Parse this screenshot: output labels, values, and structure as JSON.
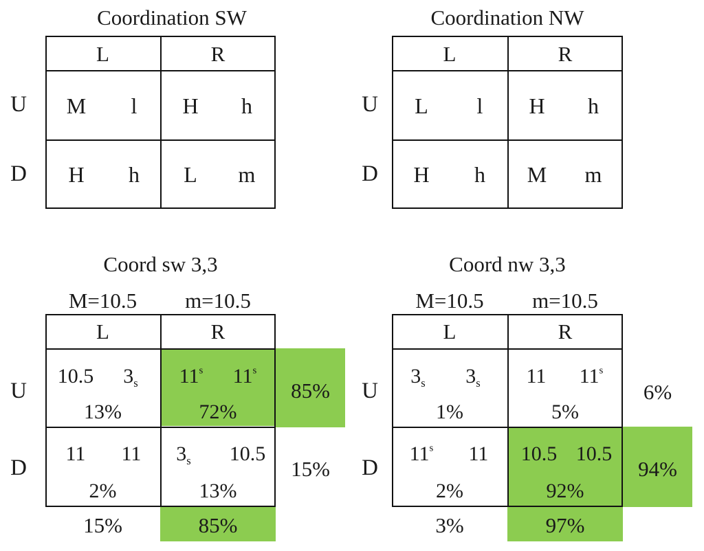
{
  "top_left": {
    "title": "Coordination SW",
    "col_labels": [
      "L",
      "R"
    ],
    "row_labels": [
      "U",
      "D"
    ],
    "cells": [
      [
        {
          "a": "M",
          "b": "l"
        },
        {
          "a": "H",
          "b": "h"
        }
      ],
      [
        {
          "a": "H",
          "b": "h"
        },
        {
          "a": "L",
          "b": "m"
        }
      ]
    ]
  },
  "top_right": {
    "title": "Coordination NW",
    "col_labels": [
      "L",
      "R"
    ],
    "row_labels": [
      "U",
      "D"
    ],
    "cells": [
      [
        {
          "a": "L",
          "b": "l"
        },
        {
          "a": "H",
          "b": "h"
        }
      ],
      [
        {
          "a": "H",
          "b": "h"
        },
        {
          "a": "M",
          "b": "m"
        }
      ]
    ]
  },
  "bottom_left": {
    "title": "Coord sw 3,3",
    "params": [
      "M=10.5",
      "m=10.5"
    ],
    "col_labels": [
      "L",
      "R"
    ],
    "row_labels": [
      "U",
      "D"
    ],
    "cells": [
      [
        {
          "a": "10.5",
          "b": "3",
          "b_sub": "s",
          "pct": "13%"
        },
        {
          "a": "11",
          "a_sup": "s",
          "b": "11",
          "b_sup": "s",
          "pct": "72%"
        }
      ],
      [
        {
          "a": "11",
          "b": "11",
          "pct": "2%"
        },
        {
          "a": "3",
          "a_sub": "s",
          "b": "10.5",
          "pct": "13%"
        }
      ]
    ],
    "row_totals": [
      "85%",
      "15%"
    ],
    "col_totals": [
      "15%",
      "85%"
    ]
  },
  "bottom_right": {
    "title": "Coord nw 3,3",
    "params": [
      "M=10.5",
      "m=10.5"
    ],
    "col_labels": [
      "L",
      "R"
    ],
    "row_labels": [
      "U",
      "D"
    ],
    "cells": [
      [
        {
          "a": "3",
          "a_sub": "s",
          "b": "3",
          "b_sub": "s",
          "pct": "1%"
        },
        {
          "a": "11",
          "b": "11",
          "b_sup": "s",
          "pct": "5%"
        }
      ],
      [
        {
          "a": "11",
          "a_sup": "s",
          "b": "11",
          "pct": "2%"
        },
        {
          "a": "10.5",
          "b": "10.5",
          "pct": "92%"
        }
      ]
    ],
    "row_totals": [
      "6%",
      "94%"
    ],
    "col_totals": [
      "3%",
      "97%"
    ]
  },
  "colors": {
    "highlight": "#8ccc50",
    "line": "#111111",
    "text": "#1a1a1a"
  }
}
